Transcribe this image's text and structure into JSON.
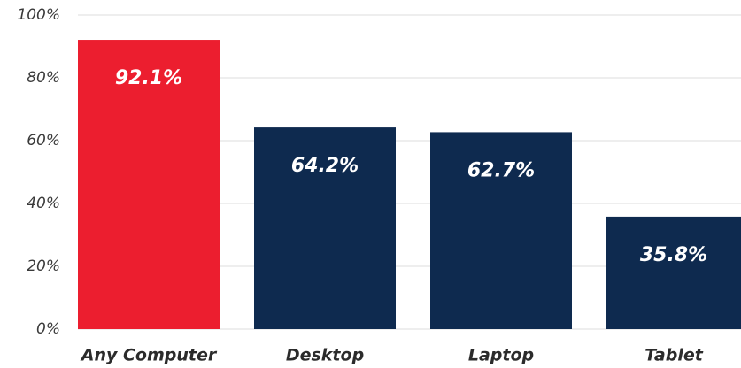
{
  "chart_data": {
    "type": "bar",
    "categories": [
      "Any Computer",
      "Desktop",
      "Laptop",
      "Tablet"
    ],
    "values": [
      92.1,
      64.2,
      62.7,
      35.8
    ],
    "value_labels": [
      "92.1%",
      "64.2%",
      "62.7%",
      "35.8%"
    ],
    "colors": [
      "#ec1e2f",
      "#0e2a4f",
      "#0e2a4f",
      "#0e2a4f"
    ],
    "ylim": [
      0,
      100
    ],
    "yticks": [
      {
        "value": 0,
        "label": "0%"
      },
      {
        "value": 20,
        "label": "20%"
      },
      {
        "value": 40,
        "label": "40%"
      },
      {
        "value": 60,
        "label": "60%"
      },
      {
        "value": 80,
        "label": "80%"
      },
      {
        "value": 100,
        "label": "100%"
      }
    ],
    "grid": true
  }
}
